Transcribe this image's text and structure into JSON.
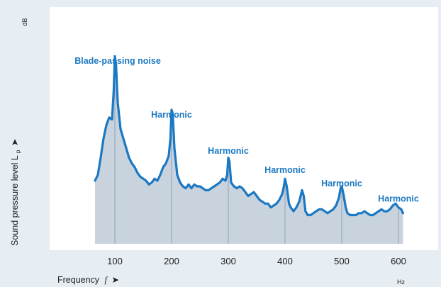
{
  "chart_data": {
    "type": "area",
    "xlabel": "Frequency",
    "xlabel_symbol": "f",
    "ylabel": "Sound pressure level L",
    "ylabel_subscript": "p",
    "xunit": "Hz",
    "yunit": "dB",
    "xticks": [
      100,
      200,
      300,
      400,
      500,
      600
    ],
    "xlim": [
      0,
      640
    ],
    "ylim": [
      0,
      100
    ],
    "grid": "vertical",
    "colors": {
      "line": "#1b78c2",
      "fill": "#c8d3de",
      "background": "#e6edf3",
      "label": "#1b78c2",
      "gridline": "#8fa3b8"
    },
    "annotations": [
      {
        "text": "Blade-passing noise",
        "x": 100,
        "y": 94
      },
      {
        "text": "Harmonic",
        "x": 200,
        "y": 66
      },
      {
        "text": "Harmonic",
        "x": 300,
        "y": 47
      },
      {
        "text": "Harmonic",
        "x": 400,
        "y": 37
      },
      {
        "text": "Harmonic",
        "x": 500,
        "y": 30
      },
      {
        "text": "Harmonic",
        "x": 600,
        "y": 22
      }
    ],
    "series": [
      {
        "x": [
          65,
          70,
          75,
          80,
          85,
          90,
          95,
          98,
          100,
          102,
          105,
          110,
          115,
          120,
          125,
          130,
          135,
          140,
          145,
          150,
          155,
          160,
          165,
          170,
          175,
          180,
          185,
          190,
          195,
          198,
          200,
          202,
          205,
          210,
          215,
          220,
          225,
          230,
          235,
          240,
          245,
          250,
          255,
          260,
          265,
          270,
          275,
          280,
          285,
          290,
          295,
          298,
          300,
          302,
          305,
          310,
          315,
          320,
          325,
          330,
          335,
          340,
          345,
          350,
          355,
          360,
          365,
          370,
          375,
          380,
          385,
          390,
          395,
          398,
          400,
          403,
          407,
          410,
          415,
          420,
          425,
          430,
          433,
          436,
          440,
          445,
          450,
          455,
          460,
          465,
          470,
          475,
          480,
          485,
          490,
          495,
          498,
          500,
          503,
          507,
          510,
          515,
          520,
          525,
          530,
          535,
          540,
          545,
          550,
          555,
          560,
          565,
          570,
          575,
          580,
          585,
          590,
          595,
          600,
          605,
          608
        ],
        "y": [
          33,
          36,
          45,
          55,
          62,
          66,
          65,
          80,
          98,
          94,
          74,
          60,
          55,
          50,
          45,
          42,
          40,
          37,
          35,
          34,
          33,
          31,
          32,
          34,
          33,
          36,
          40,
          42,
          46,
          55,
          70,
          68,
          50,
          36,
          32,
          30,
          29,
          31,
          29,
          31,
          30,
          30,
          29,
          28,
          28,
          29,
          30,
          31,
          32,
          34,
          33,
          36,
          45,
          43,
          32,
          30,
          29,
          30,
          29,
          27,
          25,
          26,
          27,
          25,
          23,
          22,
          21,
          21,
          19,
          20,
          21,
          23,
          26,
          30,
          34,
          30,
          21,
          19,
          17,
          19,
          22,
          28,
          25,
          17,
          15,
          15,
          16,
          17,
          18,
          18,
          17,
          16,
          17,
          18,
          20,
          24,
          29,
          30,
          26,
          19,
          16,
          15,
          15,
          15,
          16,
          16,
          17,
          16,
          15,
          15,
          16,
          17,
          18,
          17,
          17,
          18,
          20,
          21,
          19,
          18,
          16
        ]
      }
    ]
  }
}
